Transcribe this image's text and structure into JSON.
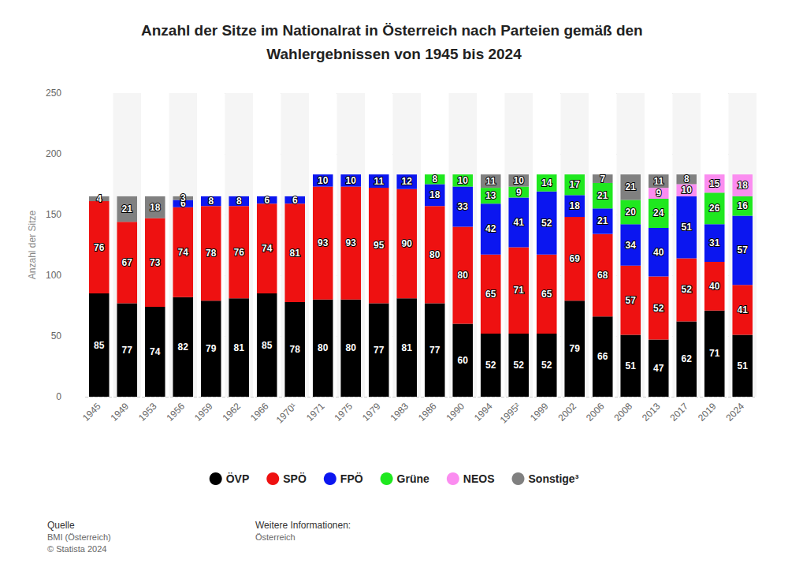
{
  "chart_data": {
    "type": "bar",
    "title": "Anzahl der Sitze im Nationalrat in Österreich nach Parteien gemäß den Wahlergebnissen von 1945 bis 2024",
    "y_label": "Anzahl der Sitze",
    "categories": [
      "1945",
      "1949",
      "1953",
      "1956",
      "1959",
      "1962",
      "1966",
      "1970¹",
      "1971",
      "1975",
      "1979",
      "1983",
      "1986",
      "1990",
      "1994",
      "1995²",
      "1999",
      "2002",
      "2006",
      "2008",
      "2013",
      "2017",
      "2019",
      "2024"
    ],
    "series": [
      {
        "name": "ÖVP",
        "color": "#000000",
        "values": [
          85,
          77,
          74,
          82,
          79,
          81,
          85,
          78,
          80,
          80,
          77,
          81,
          77,
          60,
          52,
          52,
          52,
          79,
          66,
          51,
          47,
          62,
          71,
          51
        ]
      },
      {
        "name": "SPÖ",
        "color": "#ee1111",
        "values": [
          76,
          67,
          73,
          74,
          78,
          76,
          74,
          81,
          93,
          93,
          95,
          90,
          80,
          80,
          65,
          71,
          65,
          69,
          68,
          57,
          52,
          52,
          40,
          41
        ]
      },
      {
        "name": "FPÖ",
        "color": "#0b16f0",
        "values": [
          null,
          null,
          null,
          6,
          8,
          8,
          6,
          6,
          10,
          10,
          11,
          12,
          18,
          33,
          42,
          41,
          52,
          18,
          21,
          34,
          40,
          51,
          31,
          57
        ]
      },
      {
        "name": "Grüne",
        "color": "#1fe81f",
        "values": [
          null,
          null,
          null,
          null,
          null,
          null,
          null,
          null,
          null,
          null,
          null,
          null,
          8,
          10,
          13,
          9,
          14,
          17,
          21,
          20,
          24,
          null,
          26,
          16
        ]
      },
      {
        "name": "NEOS",
        "color": "#fb8df0",
        "values": [
          null,
          null,
          null,
          null,
          null,
          null,
          null,
          null,
          null,
          null,
          null,
          null,
          null,
          null,
          null,
          null,
          null,
          null,
          null,
          null,
          9,
          10,
          15,
          18
        ]
      },
      {
        "name": "Sonstige³",
        "color": "#808080",
        "values": [
          4,
          21,
          18,
          3,
          null,
          null,
          null,
          null,
          null,
          null,
          null,
          null,
          null,
          null,
          11,
          10,
          null,
          null,
          7,
          21,
          11,
          8,
          null,
          null
        ]
      }
    ],
    "ylim": [
      0,
      250
    ],
    "yticks": [
      0,
      50,
      100,
      150,
      200,
      250
    ],
    "grid": true,
    "stacked": true,
    "data_labels": true,
    "legend": "bottom",
    "annotations": [
      "Quelle",
      "BMI (Österreich)",
      "© Statista 2024",
      "Weitere Informationen:",
      "Österreich"
    ]
  }
}
